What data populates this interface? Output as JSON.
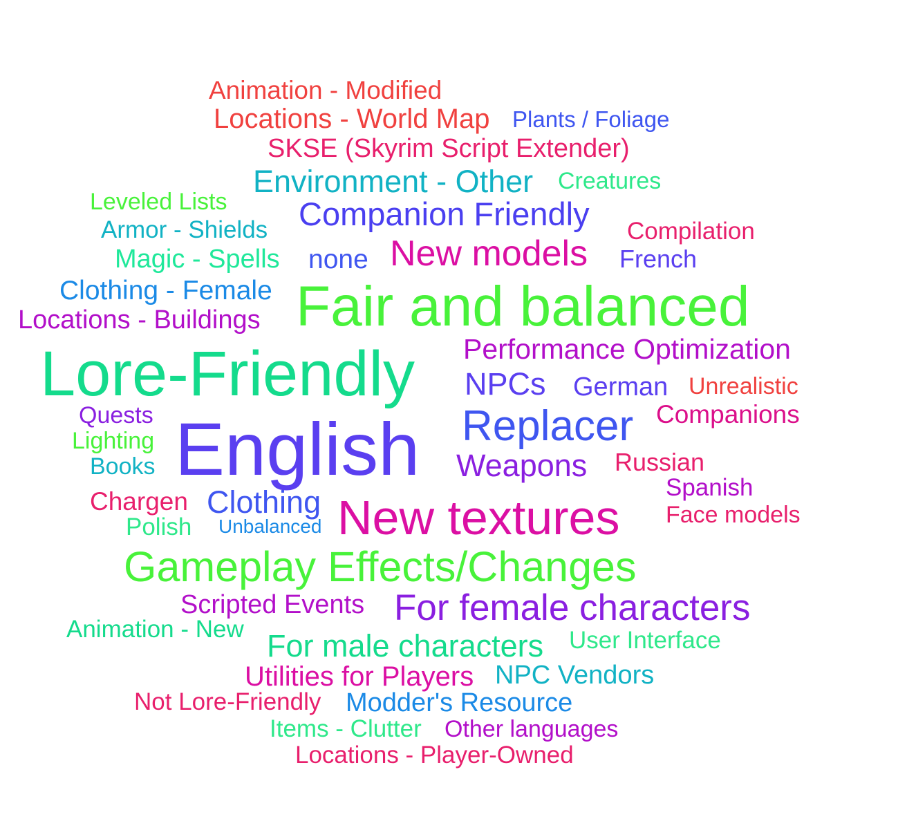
{
  "word_cloud": {
    "words": [
      {
        "id": "animation-modified",
        "text": "Animation - Modified",
        "color": "#f0413f"
      },
      {
        "id": "locations-world-map",
        "text": "Locations - World Map",
        "color": "#f0413f"
      },
      {
        "id": "plants-foliage",
        "text": "Plants / Foliage",
        "color": "#3f56f0"
      },
      {
        "id": "skse",
        "text": "SKSE (Skyrim Script Extender)",
        "color": "#e81f6c"
      },
      {
        "id": "environment-other",
        "text": "Environment - Other",
        "color": "#11b2c4"
      },
      {
        "id": "creatures",
        "text": "Creatures",
        "color": "#2ee88a"
      },
      {
        "id": "leveled-lists",
        "text": "Leveled Lists",
        "color": "#48f23a"
      },
      {
        "id": "companion-friendly",
        "text": "Companion Friendly",
        "color": "#4a3ff0"
      },
      {
        "id": "armor-shields",
        "text": "Armor - Shields",
        "color": "#11b2c4"
      },
      {
        "id": "compilation",
        "text": "Compilation",
        "color": "#e81f6c"
      },
      {
        "id": "magic-spells",
        "text": "Magic - Spells",
        "color": "#1fe89a"
      },
      {
        "id": "none",
        "text": "none",
        "color": "#3f56f0"
      },
      {
        "id": "new-models",
        "text": "New models",
        "color": "#db0fa3"
      },
      {
        "id": "french",
        "text": "French",
        "color": "#5a3ff0"
      },
      {
        "id": "clothing-female",
        "text": "Clothing - Female",
        "color": "#1b8ae6"
      },
      {
        "id": "fair-and-balanced",
        "text": "Fair and balanced",
        "color": "#48f23a"
      },
      {
        "id": "locations-buildings",
        "text": "Locations - Buildings",
        "color": "#b20fc9"
      },
      {
        "id": "performance-optimization",
        "text": "Performance Optimization",
        "color": "#b20fc9"
      },
      {
        "id": "lore-friendly",
        "text": "Lore-Friendly",
        "color": "#14db8c"
      },
      {
        "id": "npcs",
        "text": "NPCs",
        "color": "#5a3ff0"
      },
      {
        "id": "german",
        "text": "German",
        "color": "#5a3ff0"
      },
      {
        "id": "unrealistic",
        "text": "Unrealistic",
        "color": "#f0413f"
      },
      {
        "id": "quests",
        "text": "Quests",
        "color": "#8a1fe0"
      },
      {
        "id": "companions",
        "text": "Companions",
        "color": "#db0f8a"
      },
      {
        "id": "replacer",
        "text": "Replacer",
        "color": "#3f56f0"
      },
      {
        "id": "english",
        "text": "English",
        "color": "#5a3ff0"
      },
      {
        "id": "lighting",
        "text": "Lighting",
        "color": "#48f23a"
      },
      {
        "id": "books",
        "text": "Books",
        "color": "#11b2c4"
      },
      {
        "id": "weapons",
        "text": "Weapons",
        "color": "#8a1fe0"
      },
      {
        "id": "russian",
        "text": "Russian",
        "color": "#e81f6c"
      },
      {
        "id": "spanish",
        "text": "Spanish",
        "color": "#b20fc9"
      },
      {
        "id": "chargen",
        "text": "Chargen",
        "color": "#e81f6c"
      },
      {
        "id": "clothing",
        "text": "Clothing",
        "color": "#3f56f0"
      },
      {
        "id": "new-textures",
        "text": "New textures",
        "color": "#db0fa3"
      },
      {
        "id": "face-models",
        "text": "Face models",
        "color": "#e81f6c"
      },
      {
        "id": "polish",
        "text": "Polish",
        "color": "#2ee88a"
      },
      {
        "id": "unbalanced",
        "text": "Unbalanced",
        "color": "#1b8ae6"
      },
      {
        "id": "gameplay-effects",
        "text": "Gameplay Effects/Changes",
        "color": "#48f23a"
      },
      {
        "id": "scripted-events",
        "text": "Scripted Events",
        "color": "#b20fc9"
      },
      {
        "id": "for-female-characters",
        "text": "For female characters",
        "color": "#8a1fe0"
      },
      {
        "id": "animation-new",
        "text": "Animation - New",
        "color": "#14db8c"
      },
      {
        "id": "for-male-characters",
        "text": "For male characters",
        "color": "#14db8c"
      },
      {
        "id": "user-interface",
        "text": "User Interface",
        "color": "#2ee88a"
      },
      {
        "id": "utilities-for-players",
        "text": "Utilities for Players",
        "color": "#db0fa3"
      },
      {
        "id": "npc-vendors",
        "text": "NPC Vendors",
        "color": "#11b2c4"
      },
      {
        "id": "not-lore-friendly",
        "text": "Not Lore-Friendly",
        "color": "#e81f6c"
      },
      {
        "id": "modders-resource",
        "text": "Modder's Resource",
        "color": "#1b8ae6"
      },
      {
        "id": "items-clutter",
        "text": "Items - Clutter",
        "color": "#2ee88a"
      },
      {
        "id": "other-languages",
        "text": "Other languages",
        "color": "#b20fc9"
      },
      {
        "id": "locations-player-owned",
        "text": "Locations - Player-Owned",
        "color": "#e81f6c"
      }
    ]
  }
}
